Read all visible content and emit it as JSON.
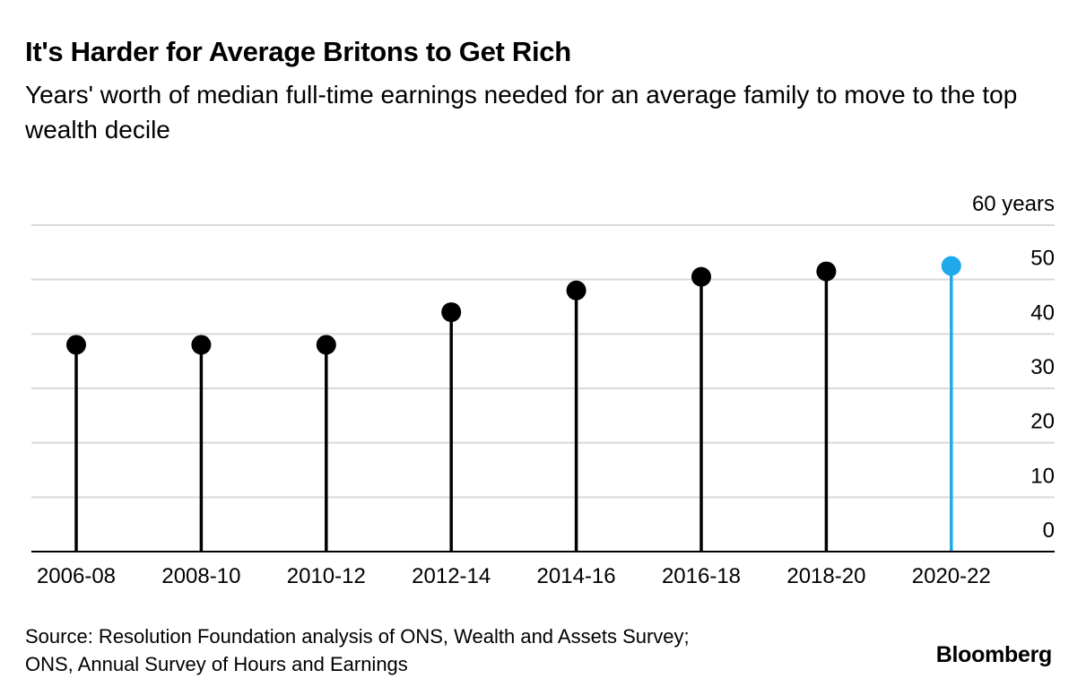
{
  "chart_data": {
    "type": "lollipop",
    "title": "It's Harder for Average Britons to Get Rich",
    "subtitle": "Years' worth of median full-time earnings needed for an average family to move to the top wealth decile",
    "categories": [
      "2006-08",
      "2008-10",
      "2010-12",
      "2012-14",
      "2014-16",
      "2016-18",
      "2018-20",
      "2020-22"
    ],
    "series": [
      {
        "name": "Years of median full-time earnings",
        "values": [
          38,
          38,
          38,
          44,
          48,
          50.5,
          51.5,
          52.5
        ]
      }
    ],
    "highlight_index": 7,
    "y_unit_label": "60 years",
    "y_ticks": [
      "0",
      "10",
      "20",
      "30",
      "40",
      "50"
    ],
    "ylim": [
      0,
      60
    ],
    "grid": true,
    "y_axis_position": "right",
    "colors": {
      "default": "#000000",
      "highlight": "#1fa9ec",
      "grid": "#d9d9d9",
      "baseline": "#000000"
    }
  },
  "footer": {
    "source_line1": "Source: Resolution Foundation analysis of ONS, Wealth and Assets Survey;",
    "source_line2": "ONS, Annual Survey of Hours and Earnings",
    "brand": "Bloomberg"
  }
}
